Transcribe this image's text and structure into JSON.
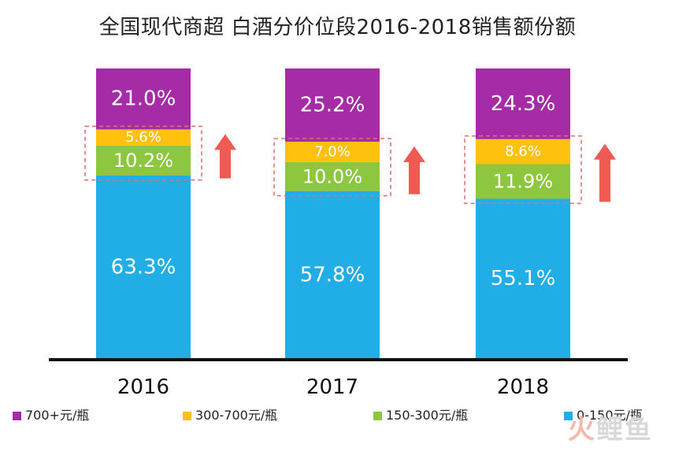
{
  "title": "全国现代商超 白酒分价位段2016-2018销售额份额",
  "watermark": {
    "part1": "火",
    "part2": "鲤鱼"
  },
  "colors": {
    "seg_0_150": "#21ADE5",
    "seg_150_300": "#8DC63F",
    "seg_300_700": "#FDC10E",
    "seg_700_plus": "#A62BA6",
    "arrow": "#F05A55",
    "highlight_box": "#E0726B",
    "axis": "#111111",
    "value_label": "#FFFFFF"
  },
  "chart_data": {
    "type": "bar",
    "stacked": true,
    "title": "全国现代商超 白酒分价位段2016-2018销售额份额",
    "categories": [
      "2016",
      "2017",
      "2018"
    ],
    "ylim": [
      0,
      100
    ],
    "grid": false,
    "legend_position": "bottom",
    "series": [
      {
        "name": "0-150元/瓶",
        "values": [
          63.3,
          57.8,
          55.1
        ],
        "labels": [
          "63.3%",
          "57.8%",
          "55.1%"
        ]
      },
      {
        "name": "150-300元/瓶",
        "values": [
          10.2,
          10.0,
          11.9
        ],
        "labels": [
          "10.2%",
          "10.0%",
          "11.9%"
        ]
      },
      {
        "name": "300-700元/瓶",
        "values": [
          5.6,
          7.0,
          8.6
        ],
        "labels": [
          "5.6%",
          "7.0%",
          "8.6%"
        ]
      },
      {
        "name": "700+元/瓶",
        "values": [
          21.0,
          25.2,
          24.3
        ],
        "labels": [
          "21.0%",
          "25.2%",
          "24.3%"
        ]
      }
    ],
    "legend_order": [
      "700+元/瓶",
      "300-700元/瓶",
      "150-300元/瓶",
      "0-150元/瓶"
    ],
    "annotations": [
      {
        "type": "dashed-box",
        "covers": [
          "150-300元/瓶",
          "300-700元/瓶"
        ],
        "categories": [
          "2016",
          "2017",
          "2018"
        ]
      },
      {
        "type": "up-arrow",
        "categories": [
          "2016",
          "2017",
          "2018"
        ]
      }
    ]
  }
}
